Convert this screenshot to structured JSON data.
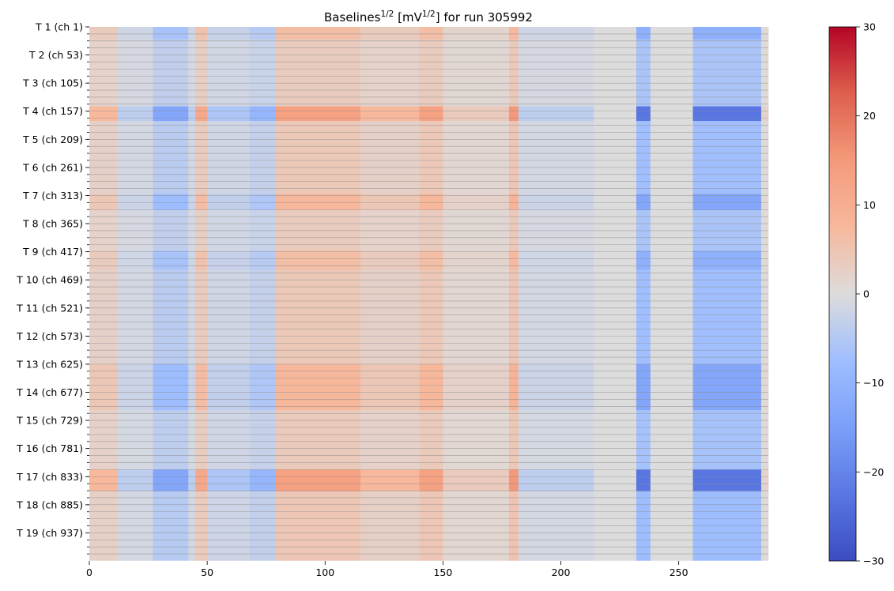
{
  "chart_data": {
    "type": "heatmap",
    "title": {
      "base": "Baselines",
      "exp1": "1/2",
      "mid": " [mV",
      "exp2": "1/2",
      "tail": "] for run 305992"
    },
    "xlabel": "",
    "ylabel": "",
    "xlim": [
      0,
      288
    ],
    "n_rows": 988,
    "x_ticks": [
      0,
      50,
      100,
      150,
      200,
      250
    ],
    "y_tick_labels": [
      "T 1 (ch 1)",
      "T 2 (ch 53)",
      "T 3 (ch 105)",
      "T 4 (ch 157)",
      "T 5 (ch 209)",
      "T 6 (ch 261)",
      "T 7 (ch 313)",
      "T 8 (ch 365)",
      "T 9 (ch 417)",
      "T 10 (ch 469)",
      "T 11 (ch 521)",
      "T 12 (ch 573)",
      "T 13 (ch 625)",
      "T 14 (ch 677)",
      "T 15 (ch 729)",
      "T 16 (ch 781)",
      "T 17 (ch 833)",
      "T 18 (ch 885)",
      "T 19 (ch 937)"
    ],
    "y_tick_channels": [
      1,
      53,
      105,
      157,
      209,
      261,
      313,
      365,
      417,
      469,
      521,
      573,
      625,
      677,
      729,
      781,
      833,
      885,
      937
    ],
    "minor_tick_step_channels": 13,
    "row_grid_step_channels": 13,
    "colorbar": {
      "colormap": "coolwarm",
      "vmin": -30,
      "vmax": 30,
      "ticks": [
        30,
        20,
        10,
        0,
        -10,
        -20,
        -30
      ],
      "tick_labels": [
        "30",
        "20",
        "10",
        "0",
        "−10",
        "−20",
        "−30"
      ]
    },
    "column_pattern": [
      {
        "x0": 0,
        "x1": 12,
        "value": 4
      },
      {
        "x0": 12,
        "x1": 27,
        "value": -2
      },
      {
        "x0": 27,
        "x1": 42,
        "value": -7
      },
      {
        "x0": 42,
        "x1": 45,
        "value": -2
      },
      {
        "x0": 45,
        "x1": 50,
        "value": 6
      },
      {
        "x0": 50,
        "x1": 68,
        "value": -3
      },
      {
        "x0": 68,
        "x1": 79,
        "value": -5
      },
      {
        "x0": 79,
        "x1": 115,
        "value": 7
      },
      {
        "x0": 115,
        "x1": 140,
        "value": 4
      },
      {
        "x0": 140,
        "x1": 150,
        "value": 7
      },
      {
        "x0": 150,
        "x1": 178,
        "value": 2
      },
      {
        "x0": 178,
        "x1": 182,
        "value": 8
      },
      {
        "x0": 182,
        "x1": 214,
        "value": -2
      },
      {
        "x0": 214,
        "x1": 232,
        "value": 0
      },
      {
        "x0": 232,
        "x1": 238,
        "value": -12
      },
      {
        "x0": 238,
        "x1": 256,
        "value": 0
      },
      {
        "x0": 256,
        "x1": 285,
        "value": -12
      },
      {
        "x0": 285,
        "x1": 288,
        "value": 1
      }
    ],
    "row_bands": [
      {
        "channels": [
          1,
          24
        ],
        "factor": 0.9
      },
      {
        "channels": [
          24,
          148
        ],
        "factor": 0.5
      },
      {
        "channels": [
          148,
          175
        ],
        "factor": 1.9
      },
      {
        "channels": [
          175,
          310
        ],
        "factor": 0.6
      },
      {
        "channels": [
          310,
          340
        ],
        "factor": 1.1
      },
      {
        "channels": [
          340,
          415
        ],
        "factor": 0.5
      },
      {
        "channels": [
          415,
          450
        ],
        "factor": 0.9
      },
      {
        "channels": [
          450,
          625
        ],
        "factor": 0.6
      },
      {
        "channels": [
          625,
          710
        ],
        "factor": 1.1
      },
      {
        "channels": [
          710,
          820
        ],
        "factor": 0.55
      },
      {
        "channels": [
          820,
          860
        ],
        "factor": 1.9
      },
      {
        "channels": [
          860,
          988
        ],
        "factor": 0.65
      }
    ]
  }
}
